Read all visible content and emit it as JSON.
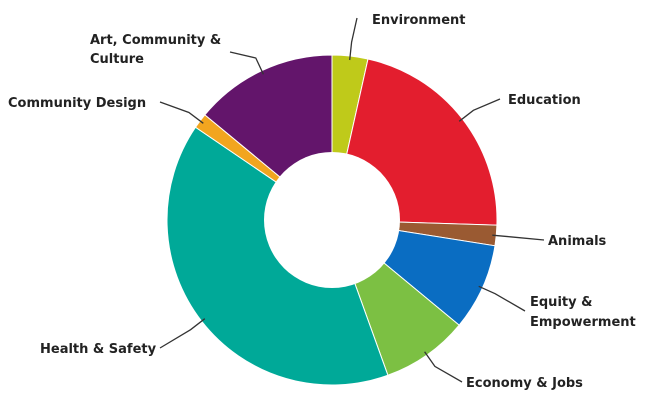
{
  "chart_data": {
    "type": "pie",
    "donut": true,
    "title": "",
    "slices": [
      {
        "label": "Environment",
        "value": 3.5,
        "color": "#BFCA1A"
      },
      {
        "label": "Education",
        "value": 22,
        "color": "#E31E2E"
      },
      {
        "label": "Animals",
        "value": 2,
        "color": "#9A5A32"
      },
      {
        "label": "Equity & Empowerment",
        "value": 8.5,
        "color": "#0A6DC2"
      },
      {
        "label": "Economy & Jobs",
        "value": 8.5,
        "color": "#7CC043"
      },
      {
        "label": "Health & Safety",
        "value": 40,
        "color": "#00A998"
      },
      {
        "label": "Community Design",
        "value": 1.5,
        "color": "#F2A51F"
      },
      {
        "label": "Art, Community & Culture",
        "value": 14,
        "color": "#63156B"
      }
    ],
    "label_lines": [
      [
        "Environment"
      ],
      [
        "Education"
      ],
      [
        "Animals"
      ],
      [
        "Equity &",
        "Empowerment"
      ],
      [
        "Economy & Jobs"
      ],
      [
        "Health & Safety"
      ],
      [
        "Community Design"
      ],
      [
        "Art, Community &",
        "Culture"
      ]
    ]
  }
}
